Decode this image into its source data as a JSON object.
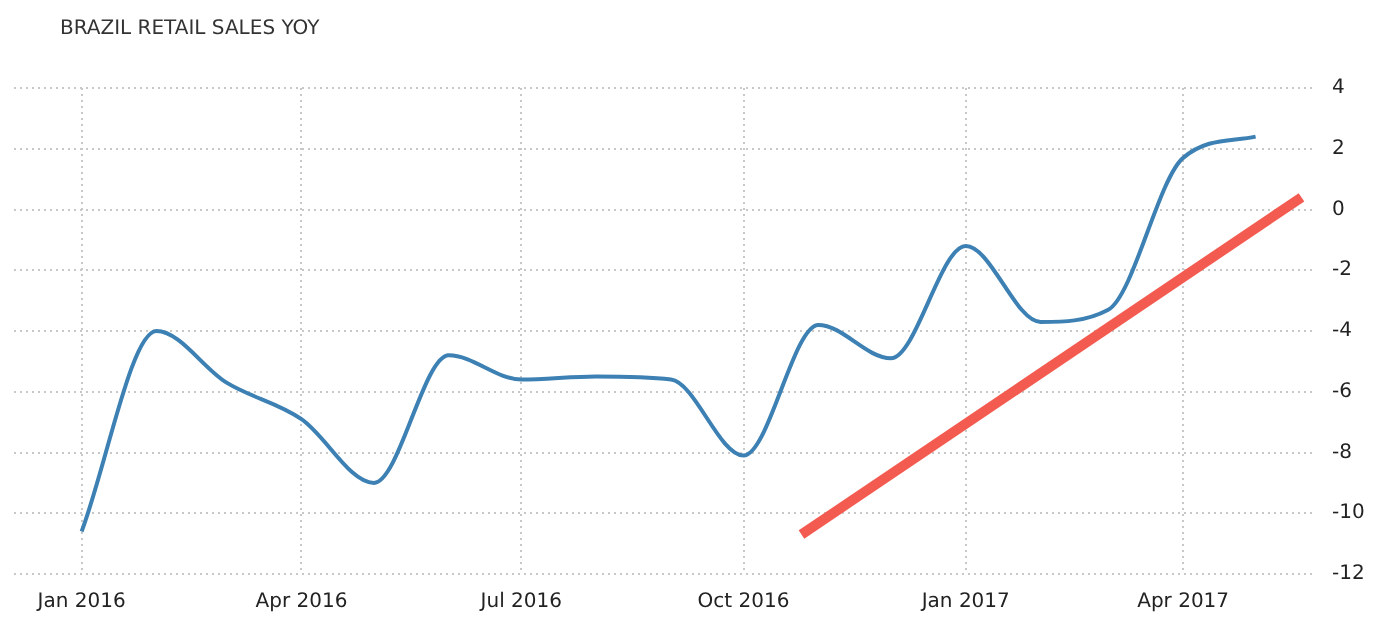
{
  "chart_data": {
    "type": "line",
    "title": "BRAZIL RETAIL SALES YOY",
    "x": [
      "2016-01",
      "2016-02",
      "2016-03",
      "2016-04",
      "2016-05",
      "2016-06",
      "2016-07",
      "2016-08",
      "2016-09",
      "2016-10",
      "2016-11",
      "2016-12",
      "2017-01",
      "2017-02",
      "2017-03",
      "2017-04",
      "2017-05"
    ],
    "series": [
      {
        "color": "#3d80b3",
        "values": [
          -10.6,
          -4.0,
          -5.7,
          -6.9,
          -9.0,
          -4.8,
          -5.6,
          -5.5,
          -5.6,
          -8.1,
          -3.8,
          -4.9,
          -1.2,
          -3.7,
          -3.3,
          1.7,
          2.4
        ]
      },
      {
        "color": "#f45b50",
        "x": [
          "2016-10-25",
          "2017-05-20"
        ],
        "values": [
          -10.7,
          0.4
        ]
      }
    ],
    "xlim": [
      "2015-12-04",
      "2017-05-26"
    ],
    "xticks": [
      {
        "value": "2016-01",
        "label": "Jan 2016"
      },
      {
        "value": "2016-04",
        "label": "Apr 2016"
      },
      {
        "value": "2016-07",
        "label": "Jul 2016"
      },
      {
        "value": "2016-10",
        "label": "Oct 2016"
      },
      {
        "value": "2017-01",
        "label": "Jan 2017"
      },
      {
        "value": "2017-04",
        "label": "Apr 2017"
      }
    ],
    "ylim": [
      -12,
      4
    ],
    "yticks": [
      -12,
      -10,
      -8,
      -6,
      -4,
      -2,
      0,
      2,
      4
    ],
    "grid": true,
    "legend": false,
    "marker": "none",
    "line_style": "solid"
  }
}
